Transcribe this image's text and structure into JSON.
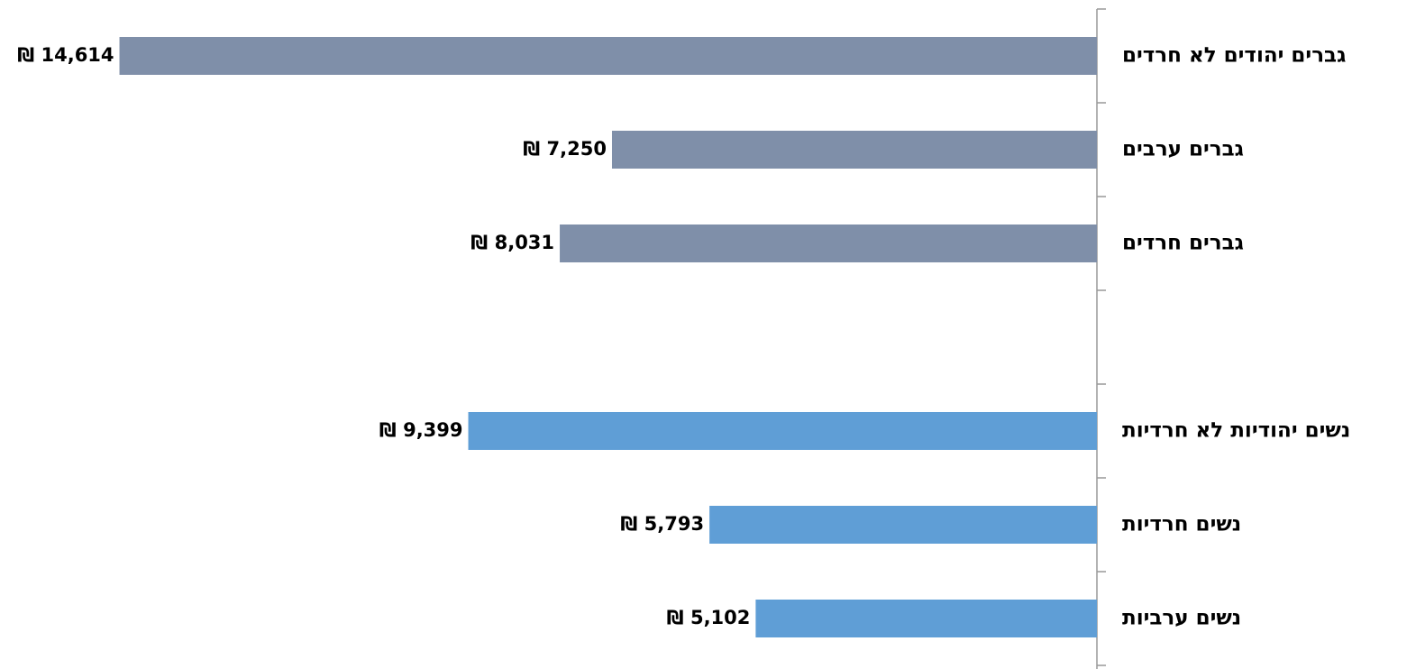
{
  "chart_data": {
    "type": "bar",
    "orientation": "horizontal",
    "categories": [
      "גברים יהודים לא חרדים",
      "גברים ערבים",
      "גברים חרדים",
      null,
      "נשים יהודיות לא חרדיות",
      "נשים חרדיות",
      "נשים ערביות"
    ],
    "values": [
      14614,
      7250,
      8031,
      null,
      9399,
      5793,
      5102
    ],
    "value_labels": [
      "₪ 14,614",
      "₪ 7,250",
      "₪ 8,031",
      null,
      "₪ 9,399",
      "₪ 5,793",
      "₪ 5,102"
    ],
    "colors": [
      "#7f8fa9",
      "#7f8fa9",
      "#7f8fa9",
      null,
      "#5f9ed6",
      "#5f9ed6",
      "#5f9ed6"
    ],
    "xlim": [
      0,
      16400
    ],
    "grid": false
  }
}
